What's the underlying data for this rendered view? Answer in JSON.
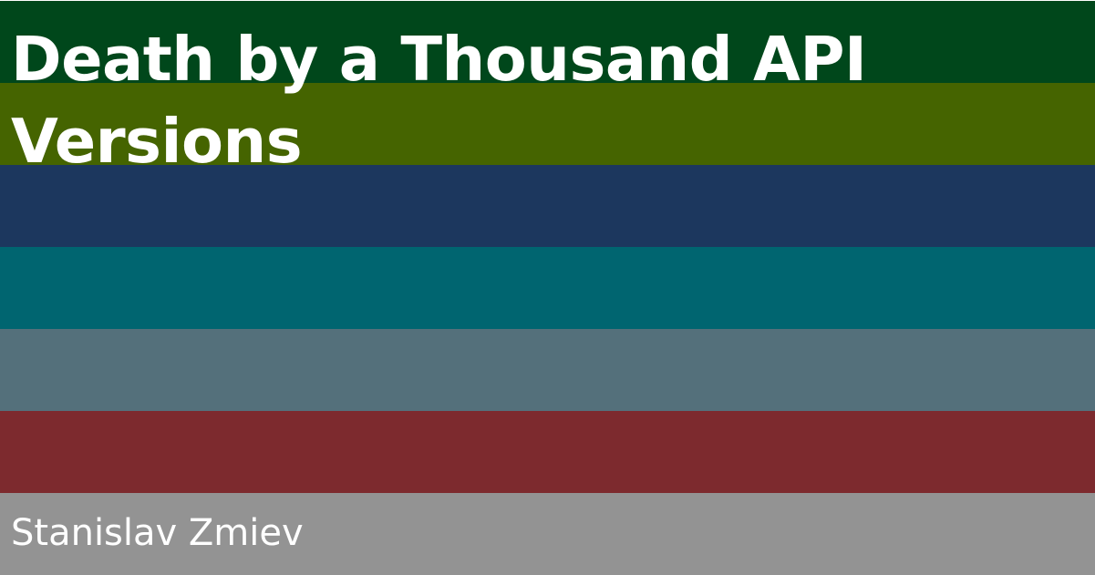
{
  "title": "Death by a Thousand API Versions",
  "author": "Stanislav Zmiev",
  "stripe_colors": [
    "#00471b",
    "#456400",
    "#1c375e",
    "#006570",
    "#54707b",
    "#7d2a2e",
    "#939393"
  ]
}
